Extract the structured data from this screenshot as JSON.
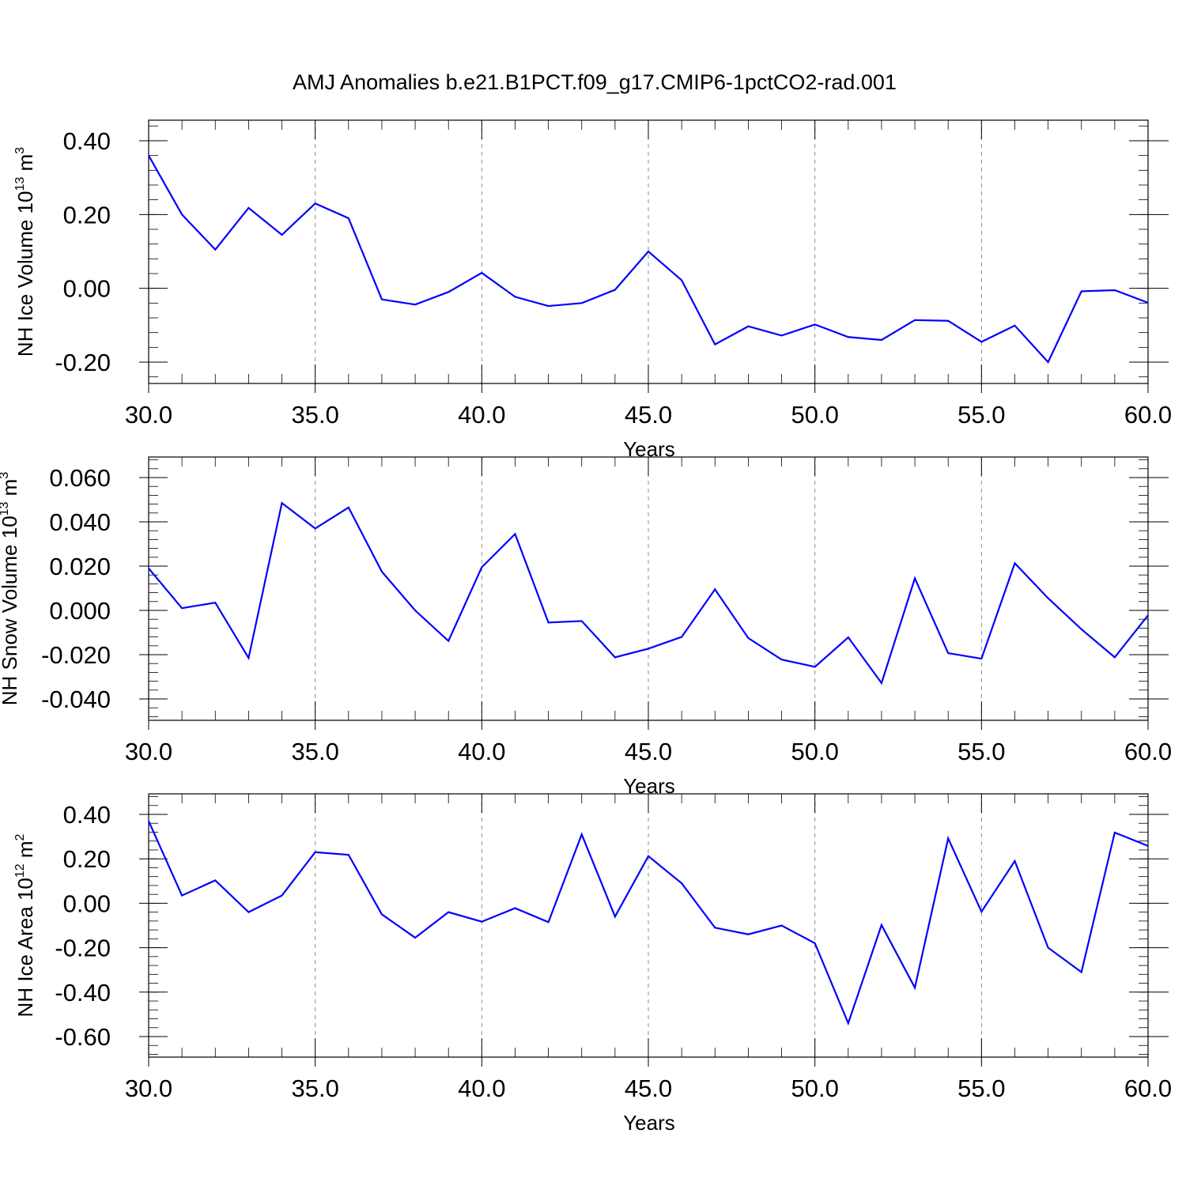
{
  "title": "AMJ Anomalies b.e21.B1PCT.f09_g17.CMIP6-1pctCO2-rad.001",
  "line_color": "#0000ff",
  "chart_data": [
    {
      "type": "line",
      "title": "",
      "xlabel": "Years",
      "ylabel": {
        "text": "NH Ice Volume 10",
        "sup": "13",
        "unit": " m",
        "unit_sup": "3"
      },
      "xlim": [
        30,
        60
      ],
      "ylim": [
        -0.2,
        0.4
      ],
      "x_ticks": [
        30,
        35,
        40,
        45,
        50,
        55,
        60
      ],
      "x_tick_labels": [
        "30.0",
        "35.0",
        "40.0",
        "45.0",
        "50.0",
        "55.0",
        "60.0"
      ],
      "y_ticks": [
        -0.2,
        0.0,
        0.2,
        0.4
      ],
      "y_tick_labels": [
        "-0.20",
        "0.00",
        "0.20",
        "0.40"
      ],
      "grid": "vertical dashed at major x ticks",
      "series": [
        {
          "x": [
            30,
            31,
            32,
            33,
            34,
            35,
            36,
            37,
            38,
            39,
            40,
            41,
            42,
            43,
            44,
            45,
            46,
            47,
            48,
            49,
            50,
            51,
            52,
            53,
            54,
            55,
            56,
            57,
            58,
            59,
            60
          ],
          "values": [
            0.36,
            0.2,
            0.105,
            0.218,
            0.145,
            0.23,
            0.19,
            -0.03,
            -0.044,
            -0.01,
            0.042,
            -0.023,
            -0.048,
            -0.04,
            -0.004,
            0.1,
            0.022,
            -0.152,
            -0.103,
            -0.128,
            -0.098,
            -0.132,
            -0.14,
            -0.086,
            -0.088,
            -0.145,
            -0.101,
            -0.2,
            -0.008,
            -0.005,
            -0.039
          ]
        }
      ]
    },
    {
      "type": "line",
      "title": "",
      "xlabel": "Years",
      "ylabel": {
        "text": "NH Snow Volume 10",
        "sup": "13",
        "unit": " m",
        "unit_sup": "3"
      },
      "xlim": [
        30,
        60
      ],
      "ylim": [
        -0.04,
        0.06
      ],
      "x_ticks": [
        30,
        35,
        40,
        45,
        50,
        55,
        60
      ],
      "x_tick_labels": [
        "30.0",
        "35.0",
        "40.0",
        "45.0",
        "50.0",
        "55.0",
        "60.0"
      ],
      "y_ticks": [
        -0.04,
        -0.02,
        0.0,
        0.02,
        0.04,
        0.06
      ],
      "y_tick_labels": [
        "-0.040",
        "-0.020",
        "0.000",
        "0.020",
        "0.040",
        "0.060"
      ],
      "grid": "vertical dashed at major x ticks",
      "series": [
        {
          "x": [
            30,
            31,
            32,
            33,
            34,
            35,
            36,
            37,
            38,
            39,
            40,
            41,
            42,
            43,
            44,
            45,
            46,
            47,
            48,
            49,
            50,
            51,
            52,
            53,
            54,
            55,
            56,
            57,
            58,
            59,
            60
          ],
          "values": [
            0.019,
            0.001,
            0.0035,
            -0.0215,
            0.0485,
            0.037,
            0.0465,
            0.0175,
            0.0,
            -0.0138,
            0.0195,
            0.0345,
            -0.0055,
            -0.0048,
            -0.0212,
            -0.0173,
            -0.012,
            0.0095,
            -0.0125,
            -0.0222,
            -0.0255,
            -0.0122,
            -0.0328,
            0.0145,
            -0.0193,
            -0.0218,
            0.0213,
            0.0055,
            -0.0085,
            -0.0212,
            -0.0022
          ]
        }
      ]
    },
    {
      "type": "line",
      "title": "",
      "xlabel": "Years",
      "ylabel": {
        "text": "NH Ice Area 10",
        "sup": "12",
        "unit": " m",
        "unit_sup": "2"
      },
      "xlim": [
        30,
        60
      ],
      "ylim": [
        -0.6,
        0.4
      ],
      "x_ticks": [
        30,
        35,
        40,
        45,
        50,
        55,
        60
      ],
      "x_tick_labels": [
        "30.0",
        "35.0",
        "40.0",
        "45.0",
        "50.0",
        "55.0",
        "60.0"
      ],
      "y_ticks": [
        -0.6,
        -0.4,
        -0.2,
        0.0,
        0.2,
        0.4
      ],
      "y_tick_labels": [
        "-0.60",
        "-0.40",
        "-0.20",
        "0.00",
        "0.20",
        "0.40"
      ],
      "grid": "vertical dashed at major x ticks",
      "series": [
        {
          "x": [
            30,
            31,
            32,
            33,
            34,
            35,
            36,
            37,
            38,
            39,
            40,
            41,
            42,
            43,
            44,
            45,
            46,
            47,
            48,
            49,
            50,
            51,
            52,
            53,
            54,
            55,
            56,
            57,
            58,
            59,
            60
          ],
          "values": [
            0.37,
            0.035,
            0.103,
            -0.04,
            0.035,
            0.23,
            0.218,
            -0.05,
            -0.155,
            -0.04,
            -0.083,
            -0.022,
            -0.085,
            0.31,
            -0.06,
            0.212,
            0.09,
            -0.11,
            -0.14,
            -0.1,
            -0.18,
            -0.54,
            -0.098,
            -0.38,
            0.292,
            -0.038,
            0.19,
            -0.2,
            -0.31,
            0.318,
            0.258
          ]
        }
      ]
    }
  ]
}
